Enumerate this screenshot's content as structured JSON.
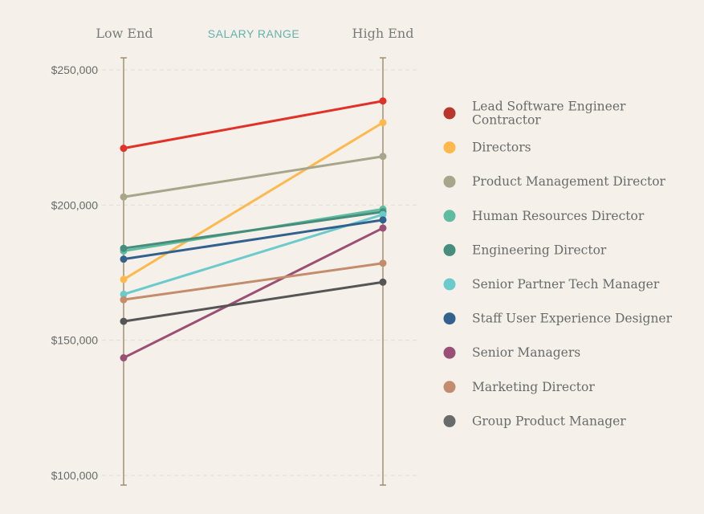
{
  "chart_data": {
    "type": "slope",
    "title": "SALARY RANGE",
    "left_label": "Low End",
    "right_label": "High End",
    "ylim": [
      100000,
      250000
    ],
    "y_ticks": [
      {
        "value": 250000,
        "label": "$250,000"
      },
      {
        "value": 200000,
        "label": "$200,000"
      },
      {
        "value": 150000,
        "label": "$150,000"
      },
      {
        "value": 100000,
        "label": "$100,000"
      }
    ],
    "grid": true,
    "legend_position": "right",
    "series": [
      {
        "name": "Lead Software Engineer Contractor",
        "name_lines": [
          "Lead Software Engineer",
          "Contractor"
        ],
        "color": "#e03228",
        "legend_color": "#b9372a",
        "low": 221000,
        "high": 238500
      },
      {
        "name": "Directors",
        "name_lines": [
          "Directors"
        ],
        "color": "#fdb94e",
        "legend_color": "#fdb94e",
        "low": 172500,
        "high": 230500
      },
      {
        "name": "Product Management Director",
        "name_lines": [
          "Product Management Director"
        ],
        "color": "#a7a68b",
        "legend_color": "#a7a68b",
        "low": 203000,
        "high": 218000
      },
      {
        "name": "Human Resources Director",
        "name_lines": [
          "Human Resources Director"
        ],
        "color": "#5fbca0",
        "legend_color": "#5fbca0",
        "low": 183000,
        "high": 198500
      },
      {
        "name": "Engineering Director",
        "name_lines": [
          "Engineering Director"
        ],
        "color": "#468d7b",
        "legend_color": "#468d7b",
        "low": 184000,
        "high": 197500
      },
      {
        "name": "Senior Partner Tech Manager",
        "name_lines": [
          "Senior Partner Tech Manager"
        ],
        "color": "#6bcacb",
        "legend_color": "#6bcacb",
        "low": 167000,
        "high": 196500
      },
      {
        "name": "Staff User Experience Designer",
        "name_lines": [
          "Staff User Experience Designer"
        ],
        "color": "#33618e",
        "legend_color": "#33618e",
        "low": 180000,
        "high": 194500
      },
      {
        "name": "Senior Managers",
        "name_lines": [
          "Senior Managers"
        ],
        "color": "#9a4f74",
        "legend_color": "#9a4f74",
        "low": 143500,
        "high": 191500
      },
      {
        "name": "Marketing Director",
        "name_lines": [
          "Marketing Director"
        ],
        "color": "#c38c6d",
        "legend_color": "#c38c6d",
        "low": 165000,
        "high": 178500
      },
      {
        "name": "Group Product Manager",
        "name_lines": [
          "Group Product Manager"
        ],
        "color": "#555555",
        "legend_color": "#6a6a6a",
        "low": 157000,
        "high": 171500
      }
    ]
  }
}
